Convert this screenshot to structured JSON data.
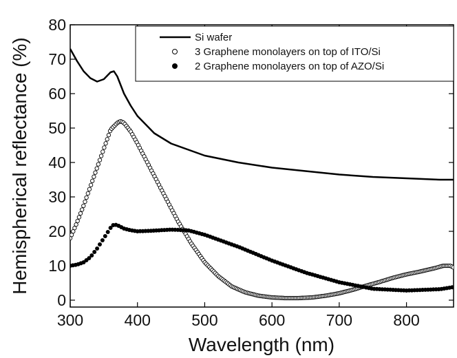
{
  "chart_data": {
    "type": "line",
    "xlabel": "Wavelength (nm)",
    "ylabel": "Hemispherical reflectance (%)",
    "xlim": [
      300,
      870
    ],
    "ylim": [
      -2,
      80
    ],
    "xticks": [
      300,
      400,
      500,
      600,
      700,
      800
    ],
    "yticks": [
      0,
      10,
      20,
      30,
      40,
      50,
      60,
      70,
      80
    ],
    "legend_position": "top-right",
    "grid": false,
    "series": [
      {
        "name": "Si wafer",
        "style": "line",
        "color": "#000000",
        "x": [
          300,
          310,
          320,
          330,
          340,
          350,
          360,
          365,
          370,
          375,
          380,
          390,
          400,
          425,
          450,
          500,
          550,
          600,
          650,
          700,
          750,
          800,
          850,
          870
        ],
        "y": [
          73,
          69.5,
          66.5,
          64.5,
          63.5,
          64.2,
          66.2,
          66.5,
          65,
          62.5,
          60,
          56.5,
          53.5,
          48.5,
          45.5,
          42,
          40,
          38.5,
          37.5,
          36.5,
          35.8,
          35.4,
          35,
          35
        ]
      },
      {
        "name": "3 Graphene monolayers on top of ITO/Si",
        "style": "open-markers",
        "color": "#000000",
        "x": [
          300,
          310,
          320,
          330,
          340,
          350,
          360,
          370,
          375,
          380,
          390,
          400,
          420,
          440,
          460,
          480,
          500,
          520,
          540,
          560,
          580,
          600,
          620,
          640,
          660,
          680,
          700,
          720,
          740,
          760,
          780,
          800,
          820,
          840,
          855,
          865,
          870
        ],
        "y": [
          18,
          22.5,
          27.5,
          33,
          38.5,
          44,
          49.5,
          51.5,
          52,
          51.5,
          49,
          45.5,
          38,
          30.5,
          23,
          16.5,
          11,
          7,
          4,
          2.3,
          1.3,
          0.8,
          0.6,
          0.6,
          0.8,
          1.3,
          2,
          3,
          4.2,
          5.3,
          6.5,
          7.5,
          8.3,
          9.2,
          10,
          10,
          9.5
        ]
      },
      {
        "name": "2 Graphene monolayers on top of AZO/Si",
        "style": "filled-markers",
        "color": "#000000",
        "x": [
          300,
          310,
          320,
          330,
          340,
          350,
          360,
          365,
          370,
          380,
          390,
          400,
          425,
          450,
          475,
          500,
          550,
          600,
          650,
          700,
          750,
          800,
          850,
          870
        ],
        "y": [
          10,
          10.3,
          11,
          12.5,
          15,
          18,
          21,
          22,
          21.8,
          20.8,
          20.3,
          20,
          20.2,
          20.5,
          20.3,
          19,
          15.5,
          11.5,
          8,
          5.2,
          3.3,
          2.8,
          3.2,
          3.8
        ]
      }
    ]
  }
}
